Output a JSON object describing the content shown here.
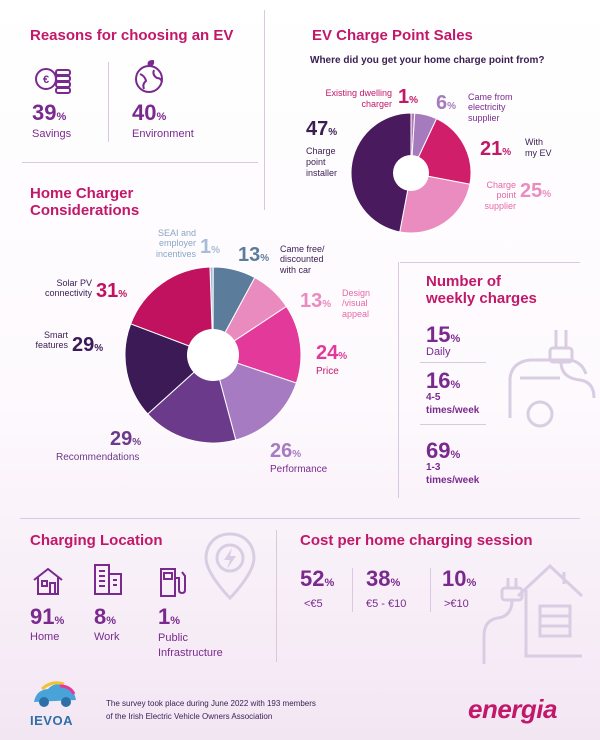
{
  "reasons": {
    "title": "Reasons for choosing an EV",
    "items": [
      {
        "pct": "39",
        "label": "Savings",
        "icon": "coins-icon"
      },
      {
        "pct": "40",
        "label": "Environment",
        "icon": "globe-leaf-icon"
      }
    ]
  },
  "sales": {
    "title": "EV Charge Point Sales",
    "question": "Where did you get your home charge point from?",
    "segments": [
      {
        "label": "Existing dwelling charger",
        "pct": 1,
        "color": "#b779b9"
      },
      {
        "label": "Came from electricity supplier",
        "pct": 6,
        "color": "#a67bbd"
      },
      {
        "label": "With my EV",
        "pct": 21,
        "color": "#d11e6b"
      },
      {
        "label": "Charge point supplier",
        "pct": 25,
        "color": "#ea8cc0"
      },
      {
        "label": "Charge point installer",
        "pct": 47,
        "color": "#4a1a5e"
      }
    ],
    "labels": {
      "existing": "Existing dwelling charger",
      "existing_pct": "1",
      "supplier_elec_1": "Came from",
      "supplier_elec_2": "electricity",
      "supplier_elec_3": "supplier",
      "supplier_elec_pct": "6",
      "withev_1": "With",
      "withev_2": "my EV",
      "withev_pct": "21",
      "cps_1": "Charge",
      "cps_2": "point",
      "cps_3": "supplier",
      "cps_pct": "25",
      "installer_1": "Charge",
      "installer_2": "point",
      "installer_3": "installer",
      "installer_pct": "47"
    }
  },
  "considerations": {
    "title_1": "Home Charger",
    "title_2": "Considerations",
    "segments": [
      {
        "label": "SEAI and employer incentives",
        "pct": 1,
        "color": "#a6bdd6"
      },
      {
        "label": "Came free/ discounted with car",
        "pct": 13,
        "color": "#5c7c9c"
      },
      {
        "label": "Design /visual appeal",
        "pct": 13,
        "color": "#e98bbf"
      },
      {
        "label": "Price",
        "pct": 24,
        "color": "#e2399a"
      },
      {
        "label": "Performance",
        "pct": 26,
        "color": "#a77bc2"
      },
      {
        "label": "Recommendations",
        "pct": 29,
        "color": "#6c3a8a"
      },
      {
        "label": "Smart features",
        "pct": 29,
        "color": "#3c1a56"
      },
      {
        "label": "Solar PV connectivity",
        "pct": 31,
        "color": "#c0125e"
      }
    ],
    "labels": {
      "seai_1": "SEAI and",
      "seai_2": "employer",
      "seai_3": "incentives",
      "seai_pct": "1",
      "free_1": "Came free/",
      "free_2": "discounted",
      "free_3": "with car",
      "free_pct": "13",
      "design_1": "Design",
      "design_2": "/visual",
      "design_3": "appeal",
      "design_pct": "13",
      "price": "Price",
      "price_pct": "24",
      "perf": "Performance",
      "perf_pct": "26",
      "rec": "Recommendations",
      "rec_pct": "29",
      "smart_1": "Smart",
      "smart_2": "features",
      "smart_pct": "29",
      "solar_1": "Solar PV",
      "solar_2": "connectivity",
      "solar_pct": "31"
    }
  },
  "weekly": {
    "title_1": "Number of",
    "title_2": "weekly charges",
    "items": [
      {
        "pct": "15",
        "l1": "Daily",
        "l2": ""
      },
      {
        "pct": "16",
        "l1": "4-5",
        "l2": "times/week"
      },
      {
        "pct": "69",
        "l1": "1-3",
        "l2": "times/week"
      }
    ]
  },
  "location": {
    "title": "Charging Location",
    "items": [
      {
        "pct": "91",
        "l1": "Home",
        "l2": "",
        "icon": "house-icon"
      },
      {
        "pct": "8",
        "l1": "Work",
        "l2": "",
        "icon": "office-building-icon"
      },
      {
        "pct": "1",
        "l1": "Public",
        "l2": "Infrastructure",
        "icon": "charging-station-icon"
      }
    ]
  },
  "cost": {
    "title": "Cost per home charging session",
    "items": [
      {
        "pct": "52",
        "label": "<€5"
      },
      {
        "pct": "38",
        "label": "€5 - €10"
      },
      {
        "pct": "10",
        "label": ">€10"
      }
    ]
  },
  "footer": {
    "logo_text": "IEVOA",
    "note_1": "The survey took place during June 2022 with 193 members",
    "note_2": "of the Irish Electric Vehicle Owners Association",
    "brand": "energia"
  },
  "pct_sign": "%",
  "colors": {
    "magenta": "#c2186a",
    "purple": "#7a2a8e",
    "dark": "#3a1d52",
    "line": "#d9c9df",
    "light_icon": "#d8cde2"
  }
}
